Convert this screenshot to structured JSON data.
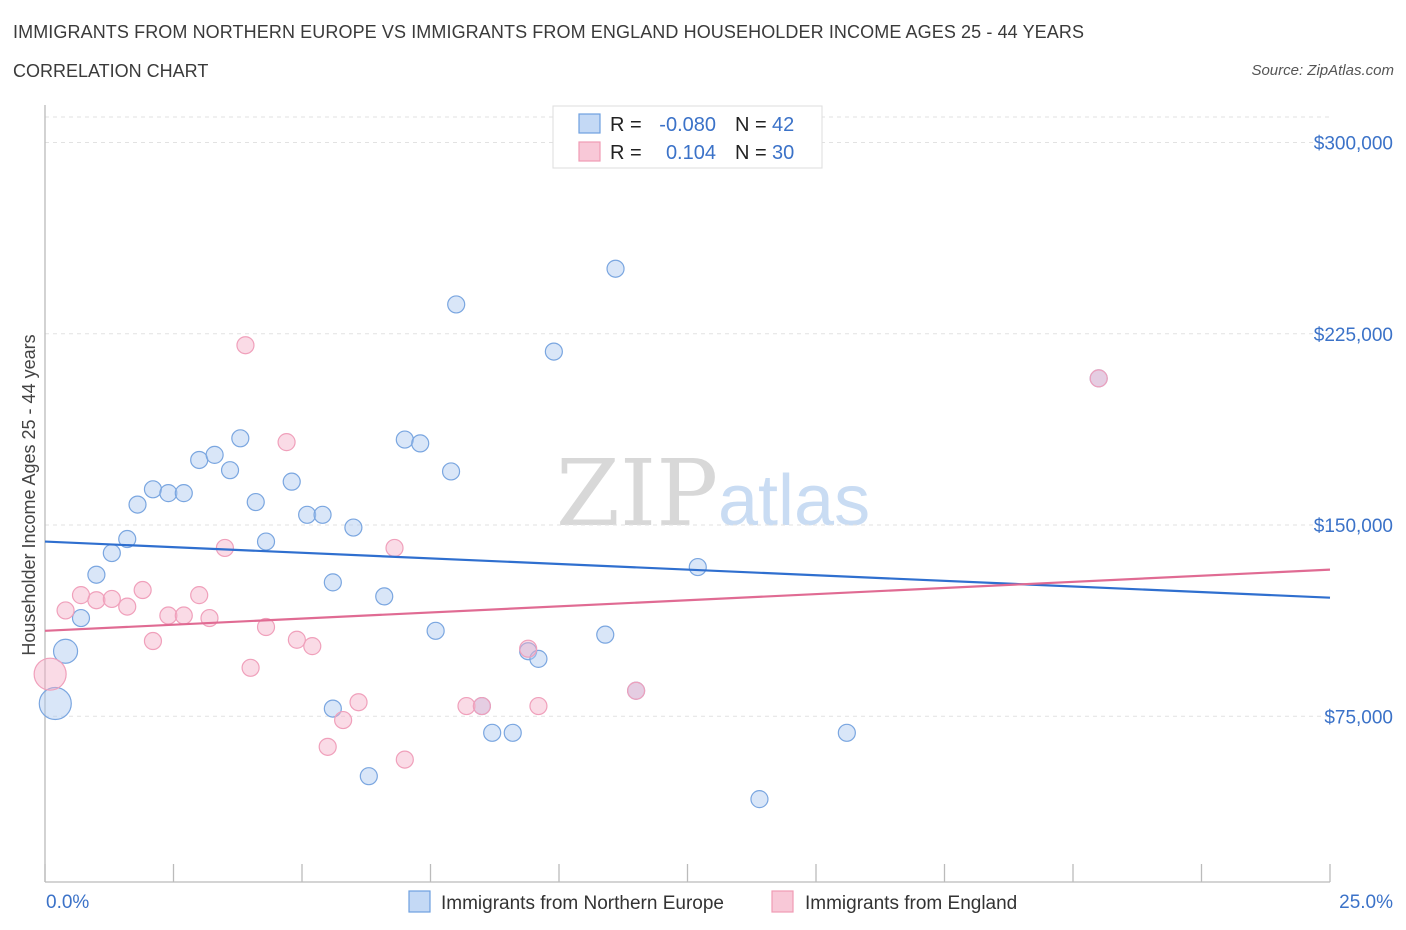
{
  "title": "IMMIGRANTS FROM NORTHERN EUROPE VS IMMIGRANTS FROM ENGLAND HOUSEHOLDER INCOME AGES 25 - 44 YEARS",
  "subtitle": "CORRELATION CHART",
  "source": "Source: ZipAtlas.com",
  "watermark": {
    "zip": "ZIP",
    "atlas": "atlas"
  },
  "colors": {
    "blue": "#6fa0e0",
    "blue_line": "#2f6fcf",
    "pink": "#f09bb5",
    "pink_line": "#e06b93",
    "tick": "#3b72c8"
  },
  "chart_data": {
    "type": "scatter",
    "ylabel": "Householder Income Ages 25 - 44 years",
    "xlim": [
      0,
      25
    ],
    "ylim": [
      10000,
      310000
    ],
    "x_tick_labels": [
      "0.0%",
      "25.0%"
    ],
    "y_ticks": [
      {
        "value": 75000,
        "label": "$75,000"
      },
      {
        "value": 150000,
        "label": "$150,000"
      },
      {
        "value": 225000,
        "label": "$225,000"
      },
      {
        "value": 300000,
        "label": "$300,000"
      }
    ],
    "legend": [
      {
        "r_label": "R =",
        "r_value": "-0.080",
        "n_label": "N =",
        "n_value": "42"
      },
      {
        "r_label": "R =",
        "r_value": "0.104",
        "n_label": "N =",
        "n_value": "30"
      }
    ],
    "series": [
      {
        "name": "Immigrants from Northern Europe",
        "trend": {
          "x": [
            0,
            25
          ],
          "y": [
            143500,
            121500
          ]
        },
        "points": [
          {
            "x": 0.2,
            "y": 80000,
            "big": 2
          },
          {
            "x": 0.4,
            "y": 100500,
            "big": 1
          },
          {
            "x": 0.7,
            "y": 113500
          },
          {
            "x": 1.0,
            "y": 130500
          },
          {
            "x": 1.3,
            "y": 139000
          },
          {
            "x": 1.6,
            "y": 144500
          },
          {
            "x": 1.8,
            "y": 158000
          },
          {
            "x": 2.1,
            "y": 164000
          },
          {
            "x": 2.4,
            "y": 162500
          },
          {
            "x": 2.7,
            "y": 162500
          },
          {
            "x": 3.0,
            "y": 175500
          },
          {
            "x": 3.3,
            "y": 177500
          },
          {
            "x": 3.6,
            "y": 171500
          },
          {
            "x": 3.8,
            "y": 184000
          },
          {
            "x": 4.1,
            "y": 159000
          },
          {
            "x": 4.3,
            "y": 143500
          },
          {
            "x": 4.8,
            "y": 167000
          },
          {
            "x": 5.1,
            "y": 154000
          },
          {
            "x": 5.4,
            "y": 154000
          },
          {
            "x": 5.6,
            "y": 127500
          },
          {
            "x": 5.6,
            "y": 78000
          },
          {
            "x": 6.0,
            "y": 149000
          },
          {
            "x": 6.3,
            "y": 51500
          },
          {
            "x": 6.6,
            "y": 122000
          },
          {
            "x": 7.0,
            "y": 183500
          },
          {
            "x": 7.3,
            "y": 182000
          },
          {
            "x": 7.6,
            "y": 108500
          },
          {
            "x": 7.9,
            "y": 171000
          },
          {
            "x": 8.0,
            "y": 236500
          },
          {
            "x": 8.5,
            "y": 79000
          },
          {
            "x": 8.7,
            "y": 68500
          },
          {
            "x": 9.1,
            "y": 68500
          },
          {
            "x": 9.4,
            "y": 100500
          },
          {
            "x": 9.6,
            "y": 97500
          },
          {
            "x": 9.9,
            "y": 218000
          },
          {
            "x": 10.9,
            "y": 107000
          },
          {
            "x": 11.1,
            "y": 250500
          },
          {
            "x": 11.5,
            "y": 85000
          },
          {
            "x": 12.7,
            "y": 133500
          },
          {
            "x": 13.9,
            "y": 42500
          },
          {
            "x": 15.6,
            "y": 68500
          },
          {
            "x": 20.5,
            "y": 207500
          }
        ]
      },
      {
        "name": "Immigrants from England",
        "trend": {
          "x": [
            0,
            25
          ],
          "y": [
            108500,
            132500
          ]
        },
        "points": [
          {
            "x": 0.1,
            "y": 91500,
            "big": 2
          },
          {
            "x": 0.4,
            "y": 116500
          },
          {
            "x": 0.7,
            "y": 122500
          },
          {
            "x": 1.0,
            "y": 120500
          },
          {
            "x": 1.3,
            "y": 121000
          },
          {
            "x": 1.6,
            "y": 118000
          },
          {
            "x": 1.9,
            "y": 124500
          },
          {
            "x": 2.1,
            "y": 104500
          },
          {
            "x": 2.4,
            "y": 114500
          },
          {
            "x": 2.7,
            "y": 114500
          },
          {
            "x": 3.0,
            "y": 122500
          },
          {
            "x": 3.2,
            "y": 113500
          },
          {
            "x": 3.5,
            "y": 141000
          },
          {
            "x": 3.9,
            "y": 220500
          },
          {
            "x": 4.0,
            "y": 94000
          },
          {
            "x": 4.3,
            "y": 110000
          },
          {
            "x": 4.7,
            "y": 182500
          },
          {
            "x": 4.9,
            "y": 105000
          },
          {
            "x": 5.2,
            "y": 102500
          },
          {
            "x": 5.5,
            "y": 63000
          },
          {
            "x": 5.8,
            "y": 73500
          },
          {
            "x": 6.1,
            "y": 80500
          },
          {
            "x": 6.8,
            "y": 141000
          },
          {
            "x": 7.0,
            "y": 58000
          },
          {
            "x": 8.2,
            "y": 79000
          },
          {
            "x": 8.5,
            "y": 79000
          },
          {
            "x": 9.4,
            "y": 101500
          },
          {
            "x": 9.6,
            "y": 79000
          },
          {
            "x": 11.5,
            "y": 85000
          },
          {
            "x": 20.5,
            "y": 207500
          }
        ]
      }
    ]
  }
}
